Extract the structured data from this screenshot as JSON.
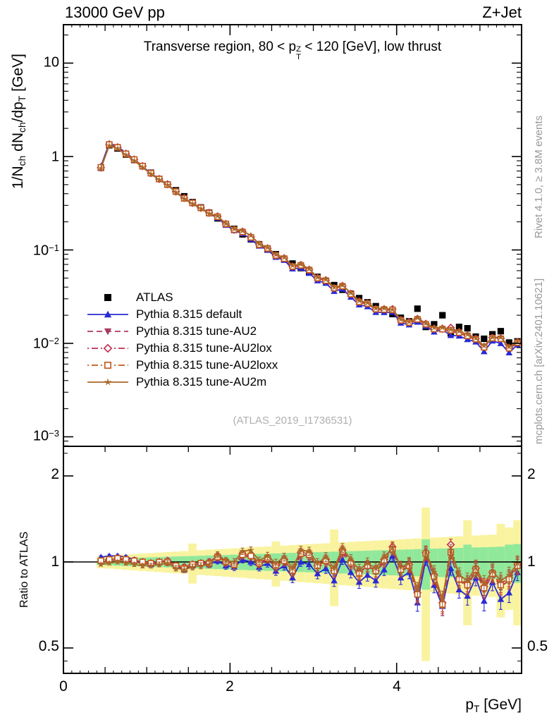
{
  "header": {
    "left": "13000 GeV pp",
    "right": "Z+Jet"
  },
  "panel_title": {
    "p1": "Transverse region, 80 < p",
    "sup": "Z",
    "sub": "T",
    "p2": " < 120 [GeV], low thrust"
  },
  "watermark": "(ATLAS_2019_I1736531)",
  "side_notes": {
    "top": "Rivet 4.1.0, ≥ 3.8M events",
    "bottom": "mcplots.cern.ch [arXiv:2401.10621]"
  },
  "axes": {
    "y_label": {
      "p1": "1/N",
      "s1": "ch",
      "p2": " dN",
      "s2": "ch",
      "p3": "/dp",
      "s3": "T",
      "p4": " [GeV]"
    },
    "x_label": {
      "p1": "p",
      "s1": "T",
      "p2": " [GeV]"
    },
    "ratio_label": "Ratio to ATLAS",
    "y_top_ticks": [
      {
        "m": "10",
        "e": ""
      },
      {
        "m": "1",
        "e": ""
      },
      {
        "m": "10",
        "e": "−1"
      },
      {
        "m": "10",
        "e": "−2"
      },
      {
        "m": "10",
        "e": "−3"
      }
    ],
    "ratio_ticks": [
      "2",
      "1",
      "0.5"
    ],
    "x_ticks": [
      "0",
      "2",
      "4"
    ]
  },
  "chart_data": {
    "type": "line",
    "title": "Transverse region, 80 < pT^Z < 120 [GeV], low thrust",
    "xlabel": "pT [GeV]",
    "ylabel_top": "1/Nch dNch/dpT [GeV]",
    "ylabel_bottom": "Ratio to ATLAS",
    "xlim": [
      0,
      5.5
    ],
    "ylim_top": [
      0.00079,
      25.8
    ],
    "ylim_ratio": [
      0.41,
      2.54
    ],
    "x_bin_width": 0.1,
    "x": [
      0.45,
      0.55,
      0.65,
      0.75,
      0.85,
      0.95,
      1.05,
      1.15,
      1.25,
      1.35,
      1.45,
      1.55,
      1.65,
      1.75,
      1.85,
      1.95,
      2.05,
      2.15,
      2.25,
      2.35,
      2.45,
      2.55,
      2.65,
      2.75,
      2.85,
      2.95,
      3.05,
      3.15,
      3.25,
      3.35,
      3.45,
      3.55,
      3.65,
      3.75,
      3.85,
      3.95,
      4.05,
      4.15,
      4.25,
      4.35,
      4.45,
      4.55,
      4.65,
      4.75,
      4.85,
      4.95,
      5.05,
      5.15,
      5.25,
      5.35,
      5.45
    ],
    "atlas": {
      "name": "ATLAS",
      "color": "#000000",
      "marker": "square-filled",
      "y": [
        0.76,
        1.32,
        1.22,
        1.05,
        0.92,
        0.79,
        0.67,
        0.575,
        0.5,
        0.435,
        0.375,
        0.325,
        0.285,
        0.25,
        0.218,
        0.19,
        0.168,
        0.147,
        0.13,
        0.115,
        0.101,
        0.09,
        0.08,
        0.0715,
        0.064,
        0.0575,
        0.0515,
        0.0465,
        0.042,
        0.0375,
        0.034,
        0.0305,
        0.0275,
        0.025,
        0.0228,
        0.0206,
        0.0188,
        0.0172,
        0.0235,
        0.015,
        0.016,
        0.02,
        0.0128,
        0.015,
        0.0145,
        0.0118,
        0.0112,
        0.0125,
        0.0135,
        0.0102,
        0.0105
      ]
    },
    "series": [
      {
        "name": "Pythia 8.315 default",
        "color": "#2a2ad4",
        "line": "solid",
        "marker": "triangle-up-filled",
        "ratio": [
          1.04,
          1.05,
          1.05,
          1.04,
          1.02,
          0.99,
          0.98,
          1.0,
          1.0,
          0.97,
          0.94,
          0.97,
          0.99,
          0.98,
          1.01,
          0.97,
          0.96,
          1.02,
          1.0,
          0.96,
          0.99,
          0.93,
          0.97,
          0.88,
          1.0,
          0.98,
          0.91,
          0.95,
          0.86,
          1.02,
          0.92,
          0.85,
          0.9,
          0.86,
          0.94,
          1.05,
          0.88,
          0.92,
          0.72,
          1.02,
          0.83,
          0.7,
          0.95,
          0.8,
          0.76,
          0.88,
          0.73,
          0.85,
          0.74,
          0.78,
          0.92
        ]
      },
      {
        "name": "Pythia 8.315 tune-AU2",
        "color": "#aa3a60",
        "line": "dashed",
        "marker": "triangle-down-filled",
        "ratio": [
          0.99,
          1.01,
          1.02,
          1.01,
          1.0,
          0.99,
          0.98,
          0.99,
          0.99,
          0.96,
          0.95,
          0.97,
          0.98,
          0.98,
          1.03,
          0.99,
          0.97,
          1.05,
          1.04,
          0.98,
          1.02,
          0.96,
          1.0,
          0.92,
          1.06,
          1.05,
          0.96,
          1.0,
          0.92,
          1.08,
          0.98,
          0.9,
          0.96,
          0.92,
          1.0,
          1.1,
          0.93,
          0.96,
          0.76,
          1.06,
          0.88,
          0.7,
          1.05,
          0.86,
          0.82,
          0.93,
          0.8,
          0.9,
          0.82,
          0.86,
          0.96
        ]
      },
      {
        "name": "Pythia 8.315 tune-AU2lox",
        "color": "#c22a50",
        "line": "dashdot",
        "marker": "diamond-open",
        "ratio": [
          1.0,
          1.02,
          1.03,
          1.02,
          1.01,
          1.0,
          0.99,
          1.0,
          1.01,
          0.97,
          0.96,
          0.98,
          0.99,
          1.0,
          1.05,
          1.0,
          0.98,
          1.07,
          1.06,
          0.99,
          1.03,
          0.97,
          1.02,
          0.93,
          1.08,
          1.07,
          0.97,
          1.02,
          0.93,
          1.1,
          1.0,
          0.92,
          0.97,
          0.93,
          1.02,
          1.13,
          0.95,
          0.98,
          0.78,
          1.08,
          0.9,
          0.72,
          1.15,
          0.88,
          0.84,
          0.95,
          0.82,
          0.92,
          0.84,
          0.88,
          0.98
        ]
      },
      {
        "name": "Pythia 8.315 tune-AU2loxx",
        "color": "#c2571a",
        "line": "dashdot",
        "marker": "square-open",
        "ratio": [
          1.01,
          1.02,
          1.03,
          1.02,
          1.01,
          1.0,
          0.99,
          1.0,
          1.0,
          0.97,
          0.95,
          0.98,
          0.99,
          0.99,
          1.04,
          1.0,
          0.98,
          1.06,
          1.05,
          0.99,
          1.03,
          0.97,
          1.01,
          0.93,
          1.07,
          1.06,
          0.97,
          1.01,
          0.93,
          1.09,
          0.99,
          0.91,
          0.97,
          0.93,
          1.01,
          1.11,
          0.94,
          0.97,
          0.77,
          1.07,
          0.89,
          0.71,
          1.08,
          0.87,
          0.83,
          0.94,
          0.81,
          0.91,
          0.83,
          0.87,
          0.97
        ]
      },
      {
        "name": "Pythia 8.315 tune-AU2m",
        "color": "#a8682a",
        "line": "solid",
        "marker": "star-filled",
        "ratio": [
          0.98,
          0.99,
          1.0,
          0.99,
          0.98,
          0.97,
          0.97,
          0.98,
          0.99,
          0.95,
          0.94,
          0.96,
          0.97,
          0.98,
          1.06,
          1.01,
          1.0,
          1.09,
          1.1,
          1.01,
          1.05,
          0.99,
          1.04,
          0.95,
          1.1,
          1.09,
          0.99,
          1.04,
          0.95,
          1.12,
          1.02,
          0.94,
          0.99,
          0.95,
          1.04,
          1.12,
          0.96,
          0.99,
          0.8,
          1.09,
          0.92,
          0.74,
          1.1,
          0.9,
          0.86,
          0.96,
          0.84,
          0.93,
          0.86,
          0.9,
          0.99
        ]
      }
    ],
    "ratio_err": [
      0.012,
      0.013,
      0.014,
      0.015,
      0.016,
      0.017,
      0.018,
      0.019,
      0.02,
      0.021,
      0.022,
      0.023,
      0.024,
      0.025,
      0.026,
      0.027,
      0.027,
      0.028,
      0.029,
      0.03,
      0.031,
      0.032,
      0.033,
      0.034,
      0.035,
      0.036,
      0.037,
      0.038,
      0.039,
      0.04,
      0.041,
      0.042,
      0.043,
      0.044,
      0.044,
      0.045,
      0.046,
      0.047,
      0.048,
      0.049,
      0.05,
      0.051,
      0.052,
      0.053,
      0.054,
      0.055,
      0.056,
      0.057,
      0.058,
      0.059,
      0.06
    ],
    "bands": {
      "green_color": "#90e89b",
      "yellow_color": "#f9f3a0",
      "green_frac": [
        0.025,
        0.027,
        0.029,
        0.032,
        0.034,
        0.036,
        0.038,
        0.04,
        0.043,
        0.045,
        0.047,
        0.049,
        0.051,
        0.054,
        0.056,
        0.058,
        0.06,
        0.062,
        0.065,
        0.067,
        0.069,
        0.071,
        0.073,
        0.076,
        0.078,
        0.08,
        0.082,
        0.084,
        0.087,
        0.089,
        0.091,
        0.093,
        0.095,
        0.098,
        0.1,
        0.102,
        0.104,
        0.106,
        0.109,
        0.2,
        0.113,
        0.115,
        0.117,
        0.12,
        0.15,
        0.124,
        0.126,
        0.128,
        0.131,
        0.15,
        0.155
      ],
      "yellow_frac": [
        0.049,
        0.053,
        0.057,
        0.062,
        0.066,
        0.07,
        0.074,
        0.078,
        0.083,
        0.087,
        0.091,
        0.16,
        0.099,
        0.104,
        0.108,
        0.112,
        0.116,
        0.12,
        0.125,
        0.129,
        0.133,
        0.18,
        0.141,
        0.146,
        0.15,
        0.154,
        0.158,
        0.162,
        0.3,
        0.171,
        0.175,
        0.179,
        0.183,
        0.188,
        0.192,
        0.196,
        0.2,
        0.204,
        0.209,
        0.55,
        0.217,
        0.221,
        0.225,
        0.23,
        0.4,
        0.238,
        0.242,
        0.246,
        0.36,
        0.32,
        0.4
      ]
    }
  }
}
